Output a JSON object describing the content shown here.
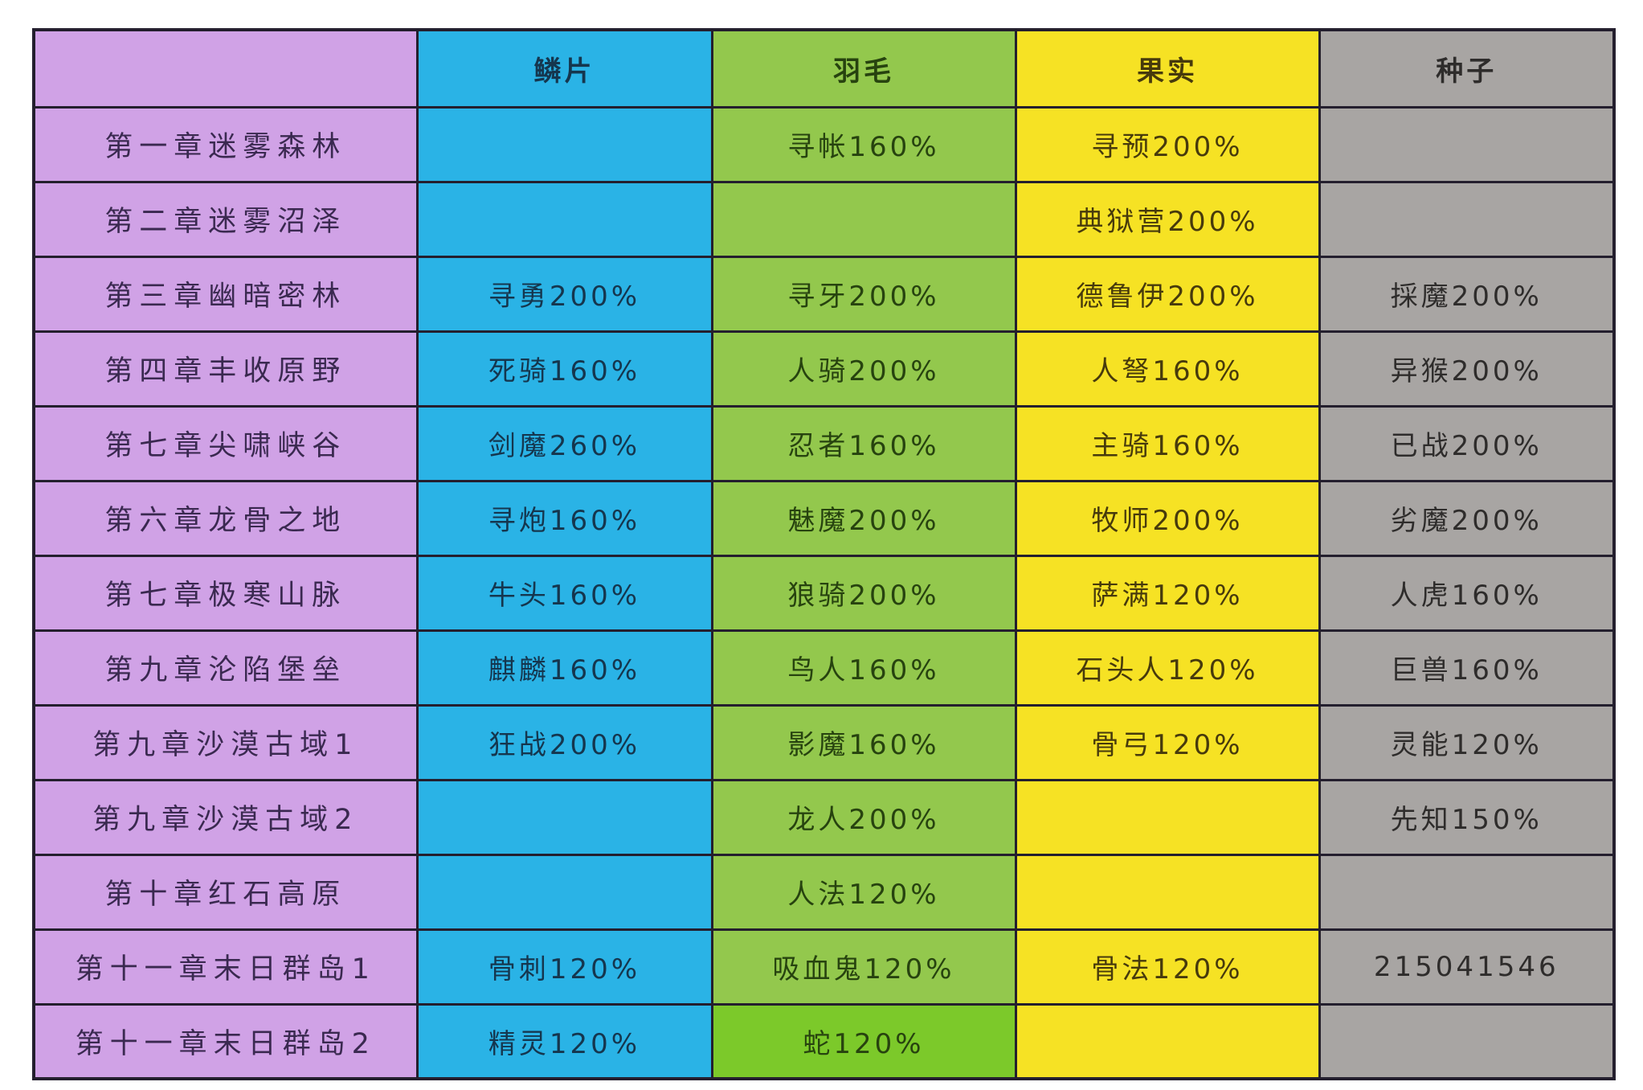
{
  "table": {
    "columns": {
      "chapter": "",
      "scale": "鳞片",
      "feather": "羽毛",
      "fruit": "果实",
      "seed": "种子"
    },
    "rows": [
      {
        "chapter": "第一章迷雾森林",
        "values": [
          "",
          "寻帐160%",
          "寻预200%",
          ""
        ]
      },
      {
        "chapter": "第二章迷雾沼泽",
        "values": [
          "",
          "",
          "典狱营200%",
          ""
        ]
      },
      {
        "chapter": "第三章幽暗密林",
        "values": [
          "寻勇200%",
          "寻牙200%",
          "德鲁伊200%",
          "採魔200%"
        ]
      },
      {
        "chapter": "第四章丰收原野",
        "values": [
          "死骑160%",
          "人骑200%",
          "人弩160%",
          "异猴200%"
        ]
      },
      {
        "chapter": "第七章尖啸峡谷",
        "values": [
          "剑魔260%",
          "忍者160%",
          "主骑160%",
          "已战200%"
        ]
      },
      {
        "chapter": "第六章龙骨之地",
        "values": [
          "寻炮160%",
          "魅魔200%",
          "牧师200%",
          "劣魔200%"
        ]
      },
      {
        "chapter": "第七章极寒山脉",
        "values": [
          "牛头160%",
          "狼骑200%",
          "萨满120%",
          "人虎160%"
        ]
      },
      {
        "chapter": "第九章沦陷堡垒",
        "values": [
          "麒麟160%",
          "鸟人160%",
          "石头人120%",
          "巨兽160%"
        ]
      },
      {
        "chapter": "第九章沙漠古域1",
        "values": [
          "狂战200%",
          "影魔160%",
          "骨弓120%",
          "灵能120%"
        ]
      },
      {
        "chapter": "第九章沙漠古域2",
        "values": [
          "",
          "龙人200%",
          "",
          "先知150%"
        ]
      },
      {
        "chapter": "第十章红石高原",
        "values": [
          "",
          "人法120%",
          "",
          ""
        ]
      },
      {
        "chapter": "第十一章末日群岛1",
        "values": [
          "骨刺120%",
          "吸血鬼120%",
          "骨法120%",
          "215041546"
        ]
      },
      {
        "chapter": "第十一章末日群岛2",
        "values": [
          "精灵120%",
          "蛇120%",
          "",
          ""
        ]
      }
    ],
    "colors": {
      "chapter_column": "#d0a2e6",
      "scale_column": "#2ab3e6",
      "feather_column": "#93c84d",
      "feather_last_row": "#7cc92a",
      "fruit_column": "#f6e224",
      "seed_column": "#a8a5a3",
      "grid_border": "#241f2e"
    }
  }
}
